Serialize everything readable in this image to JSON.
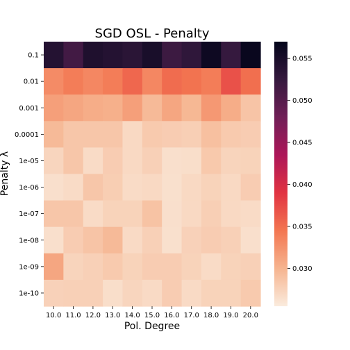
{
  "chart_data": {
    "type": "heatmap",
    "title": "SGD OSL - Penalty",
    "xlabel": "Pol. Degree",
    "ylabel": "Penalty λ",
    "x": [
      "10.0",
      "11.0",
      "12.0",
      "13.0",
      "14.0",
      "15.0",
      "16.0",
      "17.0",
      "18.0",
      "19.0",
      "20.0"
    ],
    "y": [
      "0.1",
      "0.01",
      "0.001",
      "0.0001",
      "1e-05",
      "1e-06",
      "1e-07",
      "1e-08",
      "1e-09",
      "1e-10"
    ],
    "values": [
      [
        0.054,
        0.0515,
        0.0545,
        0.054,
        0.0535,
        0.055,
        0.052,
        0.053,
        0.056,
        0.0525,
        0.0565
      ],
      [
        0.033,
        0.034,
        0.0333,
        0.034,
        0.0355,
        0.0333,
        0.0352,
        0.0347,
        0.034,
        0.037,
        0.035
      ],
      [
        0.0315,
        0.031,
        0.0305,
        0.0303,
        0.0315,
        0.0295,
        0.031,
        0.0297,
        0.032,
        0.0305,
        0.0287
      ],
      [
        0.0295,
        0.0285,
        0.0285,
        0.0285,
        0.027,
        0.0282,
        0.028,
        0.0278,
        0.029,
        0.0282,
        0.028
      ],
      [
        0.0273,
        0.0285,
        0.0268,
        0.028,
        0.027,
        0.0277,
        0.0265,
        0.0266,
        0.0283,
        0.0274,
        0.0275
      ],
      [
        0.0265,
        0.0268,
        0.0285,
        0.0279,
        0.0268,
        0.027,
        0.0264,
        0.027,
        0.0275,
        0.027,
        0.028
      ],
      [
        0.0285,
        0.0285,
        0.0268,
        0.0275,
        0.0275,
        0.0288,
        0.0265,
        0.027,
        0.0278,
        0.027,
        0.0268
      ],
      [
        0.0265,
        0.028,
        0.0287,
        0.0295,
        0.0269,
        0.0277,
        0.0264,
        0.0276,
        0.028,
        0.0277,
        0.0265
      ],
      [
        0.031,
        0.0274,
        0.0277,
        0.0282,
        0.0275,
        0.028,
        0.028,
        0.0275,
        0.0268,
        0.0275,
        0.0277
      ],
      [
        0.0276,
        0.0277,
        0.0277,
        0.0266,
        0.0273,
        0.0269,
        0.028,
        0.0269,
        0.0275,
        0.0275,
        0.0282
      ]
    ],
    "vmin": 0.0255,
    "vmax": 0.057,
    "colorbar": {
      "ticks": [
        0.03,
        0.035,
        0.04,
        0.045,
        0.05,
        0.055
      ],
      "tick_labels": [
        "0.030",
        "0.035",
        "0.040",
        "0.045",
        "0.050",
        "0.055"
      ]
    },
    "colormap": "rocket_r",
    "colormap_stops": [
      "#faebdd",
      "#f6b48f",
      "#f37651",
      "#e13342",
      "#ad1759",
      "#701f57",
      "#35193e",
      "#03051a"
    ]
  }
}
